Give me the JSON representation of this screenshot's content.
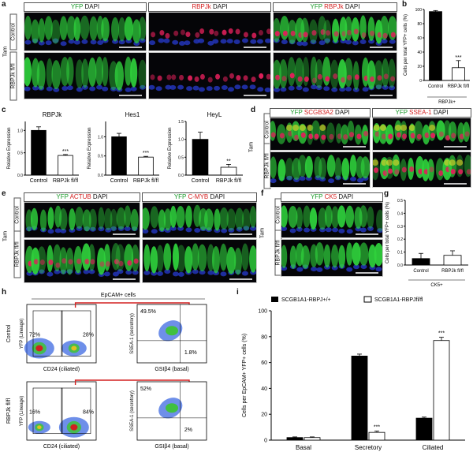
{
  "panel_letters": [
    "a",
    "b",
    "c",
    "d",
    "e",
    "f",
    "g",
    "h",
    "i"
  ],
  "a": {
    "headers": [
      [
        {
          "t": "YFP",
          "c": "g"
        },
        {
          "t": " DAPI",
          "c": "k"
        }
      ],
      [
        {
          "t": "RBPJk",
          "c": "r"
        },
        {
          "t": " DAPI",
          "c": "k"
        }
      ],
      [
        {
          "t": "YFP",
          "c": "g"
        },
        {
          "t": " RBPJk",
          "c": "r"
        },
        {
          "t": " DAPI",
          "c": "k"
        }
      ]
    ],
    "row_labels": [
      "Control",
      "RBPJk fl/fl"
    ],
    "treat_label": "Tam"
  },
  "b": {
    "ylabel": "Cells per total YFP+ cells (%)",
    "sub_label": "RBPJk+",
    "sig": "***",
    "chart_data": {
      "type": "bar",
      "categories": [
        "Control",
        "RBPJk fl/fl"
      ],
      "values": [
        97,
        18
      ],
      "errors": [
        1.5,
        10
      ],
      "ylim": [
        0,
        100
      ],
      "yticks": [
        0,
        20,
        40,
        60,
        80,
        100
      ]
    }
  },
  "c": {
    "charts": [
      {
        "title": "RBPJk",
        "ylabel": "Relative Expression",
        "sig": "***",
        "chart_data": {
          "type": "bar",
          "categories": [
            "Control",
            "RBPJk fl/fl"
          ],
          "values": [
            1.0,
            0.44
          ],
          "errors": [
            0.08,
            0.02
          ],
          "ylim": [
            0,
            1.2
          ],
          "yticks": [
            0.0,
            0.5,
            1.0
          ]
        }
      },
      {
        "title": "Hes1",
        "ylabel": "Relative Expression",
        "sig": "***",
        "chart_data": {
          "type": "bar",
          "categories": [
            "Control",
            "RBPJk fl/fl"
          ],
          "values": [
            1.0,
            0.47
          ],
          "errors": [
            0.09,
            0.02
          ],
          "ylim": [
            0,
            1.4
          ],
          "yticks": [
            0.0,
            0.5,
            1.0
          ]
        }
      },
      {
        "title": "HeyL",
        "ylabel": "Relative Expression",
        "sig": "**",
        "chart_data": {
          "type": "bar",
          "categories": [
            "Control",
            "RBPJk fl/fl"
          ],
          "values": [
            1.0,
            0.22
          ],
          "errors": [
            0.2,
            0.08
          ],
          "ylim": [
            0,
            1.5
          ],
          "yticks": [
            0.0,
            0.5,
            1.0,
            1.5
          ]
        }
      }
    ]
  },
  "d": {
    "headers": [
      [
        {
          "t": "YFP",
          "c": "g"
        },
        {
          "t": " SCGB3A2",
          "c": "r"
        },
        {
          "t": " DAPI",
          "c": "k"
        }
      ],
      [
        {
          "t": "YFP",
          "c": "g"
        },
        {
          "t": " SSEA-1",
          "c": "r"
        },
        {
          "t": " DAPI",
          "c": "k"
        }
      ]
    ],
    "row_labels": [
      "Control",
      "RBPJk fl/fl"
    ],
    "treat_label": "Tam"
  },
  "e": {
    "headers": [
      [
        {
          "t": "YFP",
          "c": "g"
        },
        {
          "t": " ACTUB",
          "c": "r"
        },
        {
          "t": " DAPI",
          "c": "k"
        }
      ],
      [
        {
          "t": "YFP",
          "c": "g"
        },
        {
          "t": " C-MYB",
          "c": "r"
        },
        {
          "t": " DAPI",
          "c": "k"
        }
      ]
    ],
    "row_labels": [
      "Control",
      "RBPJk fl/fl"
    ],
    "treat_label": "Tam"
  },
  "f": {
    "headers": [
      [
        {
          "t": "YFP",
          "c": "g"
        },
        {
          "t": " CK5",
          "c": "r"
        },
        {
          "t": " DAPI",
          "c": "k"
        }
      ]
    ],
    "row_labels": [
      "Control",
      "RBPJk fl/fl"
    ],
    "treat_label": "Tam"
  },
  "g": {
    "ylabel": "Cells per total YFP+ cells (%)",
    "sub_label": "CK5+",
    "chart_data": {
      "type": "bar",
      "categories": [
        "Control",
        "RBPJk fl/fl"
      ],
      "values": [
        0.05,
        0.075
      ],
      "errors": [
        0.04,
        0.035
      ],
      "ylim": [
        0,
        0.5
      ],
      "yticks": [
        0.0,
        0.1,
        0.2,
        0.3,
        0.4,
        0.5
      ]
    }
  },
  "h": {
    "title": "EpCAM+ cells",
    "row_labels": [
      "Control",
      "RBPJk fl/fl"
    ],
    "left_xlabel": "CD24 (ciliated)",
    "left_ylabel": "YFP (Lineage)",
    "right_xlabel": "GSIβ4 (basal)",
    "right_ylabel": "SSEA-1 (secretory)",
    "rows": [
      {
        "left_pcts": [
          "72%",
          "28%"
        ],
        "right_pcts": [
          "49.5%",
          "1.8%"
        ]
      },
      {
        "left_pcts": [
          "16%",
          "84%"
        ],
        "right_pcts": [
          "52%",
          "2%"
        ]
      }
    ]
  },
  "i": {
    "legend": [
      "SCGB1A1-RBPJ+/+",
      "SCGB1A1-RBPJfl/fl"
    ],
    "ylabel": "Cells per EpCAM+ YFP+ cells (%)",
    "sigs": [
      "",
      "***",
      "***"
    ],
    "chart_data": {
      "type": "bar",
      "categories": [
        "Basal",
        "Secretory",
        "Ciliated"
      ],
      "series": [
        {
          "name": "SCGB1A1-RBPJ+/+",
          "values": [
            2,
            65,
            17
          ],
          "errors": [
            0.5,
            1.5,
            0.8
          ]
        },
        {
          "name": "SCGB1A1-RBPJfl/fl",
          "values": [
            2,
            6,
            77
          ],
          "errors": [
            0.5,
            1,
            2.5
          ]
        }
      ],
      "ylim": [
        0,
        100
      ],
      "yticks": [
        0,
        20,
        40,
        60,
        80,
        100
      ]
    }
  }
}
